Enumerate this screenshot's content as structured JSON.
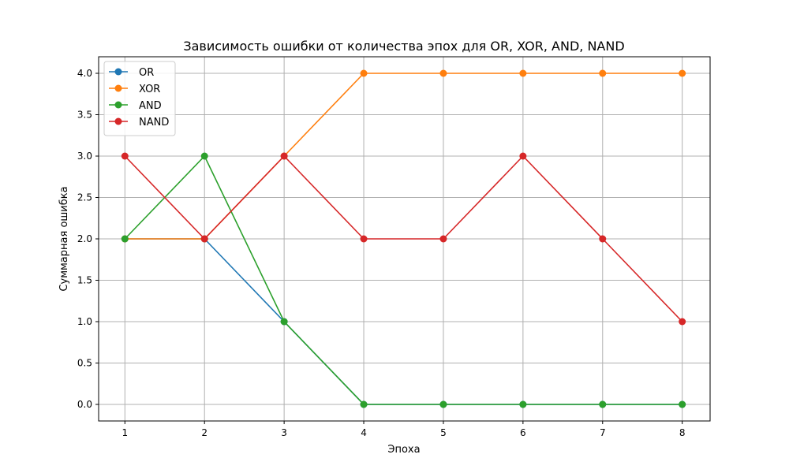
{
  "chart_data": {
    "type": "line",
    "title": "Зависимость ошибки от количества эпох для OR, XOR, AND, NAND",
    "xlabel": "Эпоха",
    "ylabel": "Суммарная ошибка",
    "x": [
      1,
      2,
      3,
      4,
      5,
      6,
      7,
      8
    ],
    "xlim": [
      0.67,
      8.35
    ],
    "ylim": [
      -0.2,
      4.2
    ],
    "xticks": [
      "1",
      "2",
      "3",
      "4",
      "5",
      "6",
      "7",
      "8"
    ],
    "yticks": [
      "0.0",
      "0.5",
      "1.0",
      "1.5",
      "2.0",
      "2.5",
      "3.0",
      "3.5",
      "4.0"
    ],
    "grid": true,
    "legend_position": "upper-left",
    "series": [
      {
        "name": "OR",
        "color": "#1f77b4",
        "values": [
          2,
          2,
          1,
          0,
          0,
          0,
          0,
          0
        ]
      },
      {
        "name": "XOR",
        "color": "#ff7f0e",
        "values": [
          2,
          2,
          3,
          4,
          4,
          4,
          4,
          4
        ]
      },
      {
        "name": "AND",
        "color": "#2ca02c",
        "values": [
          2,
          3,
          1,
          0,
          0,
          0,
          0,
          0
        ]
      },
      {
        "name": "NAND",
        "color": "#d62728",
        "values": [
          3,
          2,
          3,
          2,
          2,
          3,
          2,
          1
        ]
      }
    ]
  }
}
